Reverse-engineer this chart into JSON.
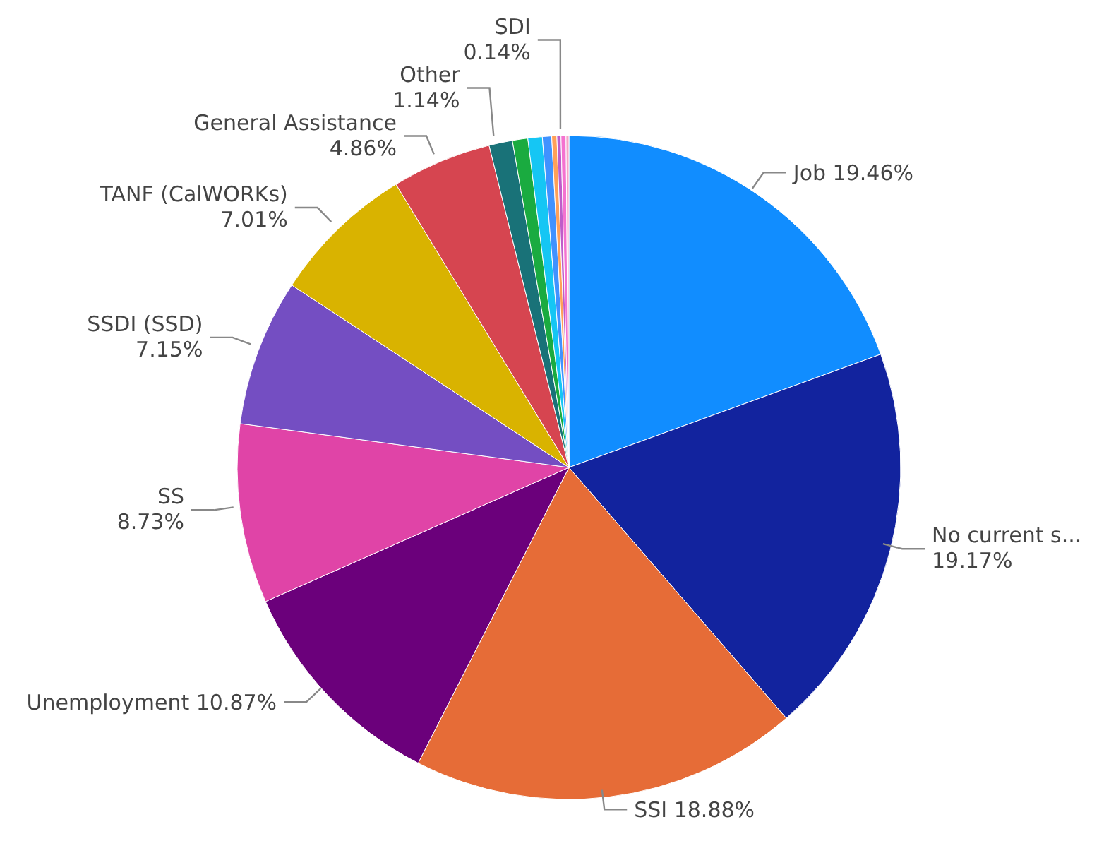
{
  "chart_data": {
    "type": "pie",
    "categories": [
      "Job",
      "No current s...",
      "SSI",
      "Unemployment",
      "SS",
      "SSDI (SSD)",
      "TANF (CalWORKs)",
      "General Assistance",
      "Other",
      null,
      null,
      null,
      null,
      null,
      null,
      "SDI"
    ],
    "values": [
      19.46,
      19.17,
      18.88,
      10.87,
      8.73,
      7.15,
      7.01,
      4.86,
      1.14,
      0.75,
      0.7,
      0.45,
      0.25,
      0.2,
      0.24,
      0.14
    ],
    "value_labels": [
      "19.46%",
      "19.17%",
      "18.88%",
      "10.87%",
      "8.73%",
      "7.15%",
      "7.01%",
      "4.86%",
      "1.14%",
      null,
      null,
      null,
      null,
      null,
      null,
      "0.14%"
    ],
    "colors": [
      "#118dff",
      "#12239e",
      "#e66c37",
      "#6b007b",
      "#e044a7",
      "#744ec2",
      "#d9b300",
      "#d64550",
      "#197278",
      "#1aab40",
      "#15c6f4",
      "#4092ff",
      "#ffa058",
      "#be5dc9",
      "#f472d0",
      "#f5a3c7"
    ],
    "legend": false
  }
}
